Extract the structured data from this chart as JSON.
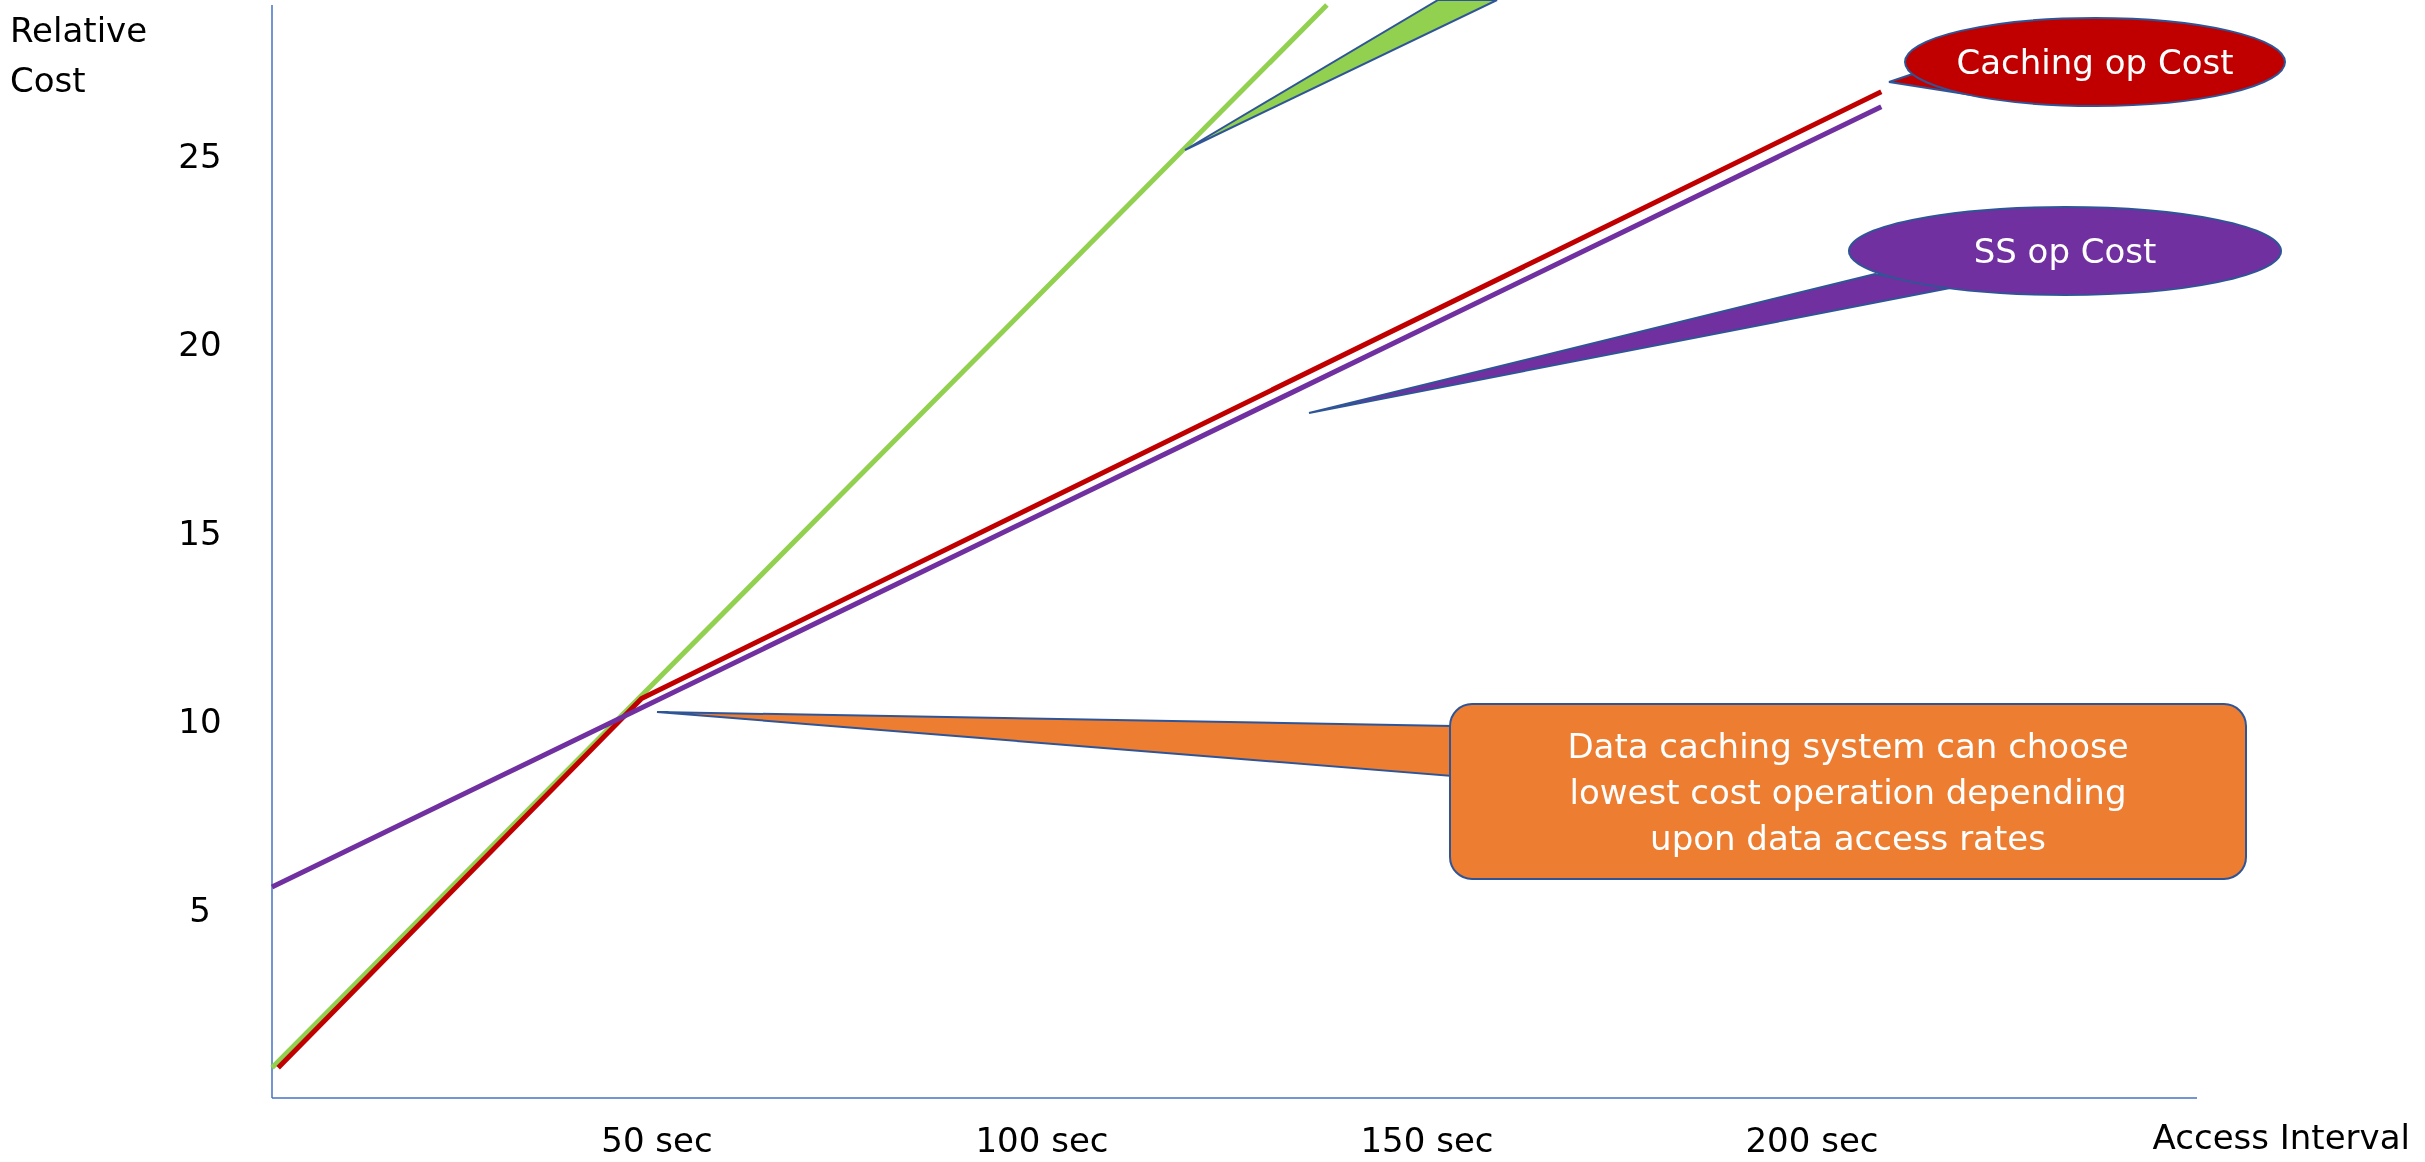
{
  "chart_data": {
    "type": "line",
    "xlabel": "Access Interval",
    "ylabel": "Relative Cost",
    "xlim": [
      0,
      250
    ],
    "ylim": [
      0,
      29
    ],
    "xticks": [
      {
        "value": 50,
        "label": "50 sec"
      },
      {
        "value": 100,
        "label": "100 sec"
      },
      {
        "value": 150,
        "label": "150 sec"
      },
      {
        "value": 200,
        "label": "200 sec"
      }
    ],
    "yticks": [
      5,
      10,
      15,
      20,
      25
    ],
    "grid": false,
    "marker": "none",
    "line_style": "solid",
    "series": [
      {
        "color": "#92d050",
        "x": [
          0,
          137
        ],
        "values": [
          0.8,
          29
        ]
      },
      {
        "name": "Caching op Cost",
        "color": "#c00000",
        "x": [
          0.8,
          48,
          209
        ],
        "values": [
          0.8,
          10.6,
          26.7
        ]
      },
      {
        "name": "SS op Cost",
        "color": "#7030a0",
        "x": [
          0,
          209
        ],
        "values": [
          5.6,
          26.3
        ]
      }
    ],
    "annotations": [
      "Data caching system can choose lowest cost operation depending upon data access rates"
    ]
  }
}
